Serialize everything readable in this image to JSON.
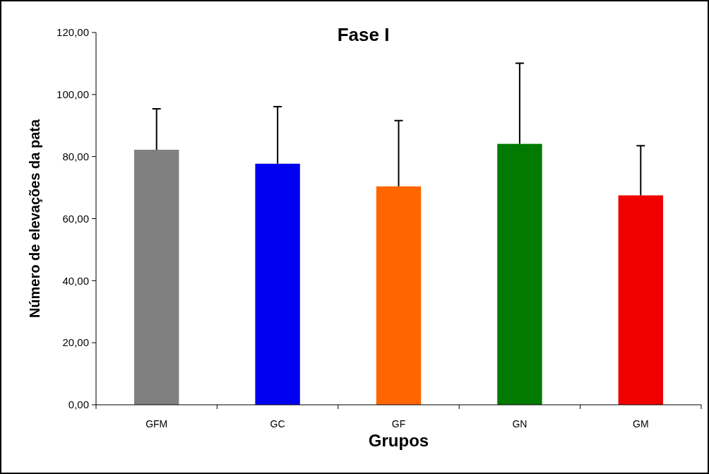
{
  "chart_data": {
    "type": "bar",
    "title": "Fase I",
    "xlabel": "Grupos",
    "ylabel": "Número de elevações da pata",
    "categories": [
      "GFM",
      "GC",
      "GF",
      "GN",
      "GM"
    ],
    "values": [
      82.2,
      77.7,
      70.4,
      84.1,
      67.5
    ],
    "colors": [
      "#808080",
      "#0000f0",
      "#ff6600",
      "#007a00",
      "#f00000"
    ],
    "errors": [
      [
        82.2,
        95.4
      ],
      [
        77.7,
        96.1
      ],
      [
        70.4,
        91.6
      ],
      [
        84.1,
        110.1
      ],
      [
        67.5,
        83.5
      ]
    ],
    "ylim": [
      0,
      120
    ],
    "yticks": [
      {
        "value": 0,
        "label": "0,00"
      },
      {
        "value": 20,
        "label": "20,00"
      },
      {
        "value": 40,
        "label": "40,00"
      },
      {
        "value": 60,
        "label": "60,00"
      },
      {
        "value": 80,
        "label": "80,00"
      },
      {
        "value": 100,
        "label": "100,00"
      },
      {
        "value": 120,
        "label": "120,00"
      }
    ],
    "grid": false
  }
}
